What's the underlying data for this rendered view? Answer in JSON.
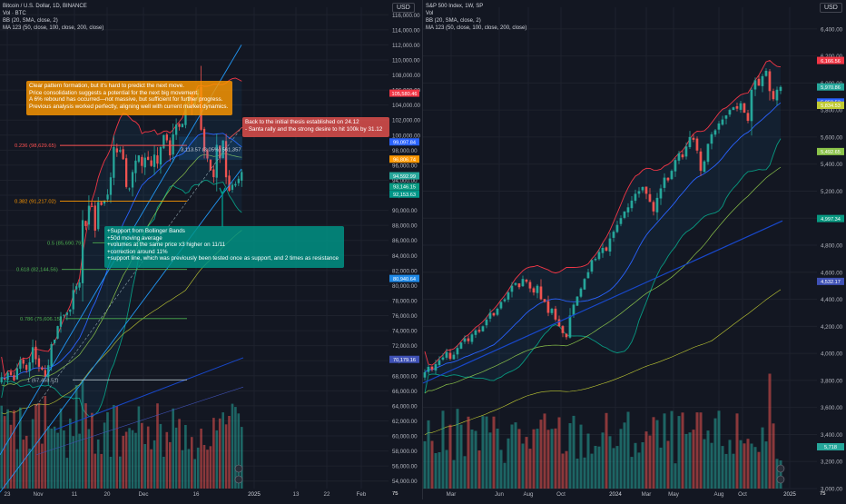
{
  "colors": {
    "bg": "#131722",
    "grid": "#1e222d",
    "text": "#b2b5be",
    "up": "#26a69a",
    "down": "#ef5350",
    "bbUpper": "#f23645",
    "bbMid": "#2962ff",
    "bbLower": "#089981",
    "ma": "#1848cc",
    "fib": "#ff5252",
    "orange": "#ff9800",
    "teal": "#009688",
    "blue": "#2196f3"
  },
  "left_panel": {
    "legend": [
      "Bitcoin / U.S. Dollar, 1D, BINANCE",
      "Vol · BTC",
      "BB (20, SMA, close, 2)",
      "MA 123 (50, close, 100, close, 200, close)"
    ],
    "currency": "USD",
    "notes": {
      "orange": [
        "Clear pattern formation, but it's hard to predict the next move.",
        "Price consolidation suggests a potential for the next big movement.",
        "A 6% rebound has occurred—not massive, but sufficient for further progress.",
        "Previous analysis worked perfectly, aligning well with current market dynamics."
      ],
      "red": [
        "Back to the initial thesis established on 24.12",
        "- Santa rally and the strong desire to hit 100k by 31.12"
      ],
      "teal": [
        "+Support from Bollinger Bands",
        "+50d moving average",
        "+volumes at the same price x3 higher on 11/11",
        "+correction around 11%",
        "+support line, which was previously been tested once as support, and 2 times as resistance"
      ]
    },
    "measure_label": "3,113.57 (3.05%) 561,357",
    "fib_labels": [
      "0.236 (98,629.65)",
      "0.382 (91,217.02)",
      "0.5 (85,690.79)",
      "0.618 (82,144.56)",
      "0.786 (75,606.15)",
      "1 (67,458.51)"
    ],
    "price_badges": [
      "105,580.46",
      "99,097.84",
      "96,806.74",
      "94,592.99",
      "93,146.15",
      "92,153.63",
      "80,940.64",
      "70,179.16"
    ],
    "axis_label": "75"
  },
  "right_panel": {
    "legend": [
      "S&P 500 Index, 1W, SP",
      "Vol",
      "BB (20, SMA, close, 2)",
      "MA 123 (50, close, 100, close, 200, close)"
    ],
    "currency": "USD",
    "price_badges": [
      "6,166.56",
      "5,970.86",
      "5,859.53",
      "5,836.08",
      "5,834.53",
      "5,492.65",
      "4,997.34",
      "4,532.17",
      "5,718"
    ],
    "axis_label": "75"
  },
  "chart_data": [
    {
      "type": "candlestick",
      "title": "Bitcoin / U.S. Dollar, 1D, BINANCE",
      "x_ticks": [
        "23",
        "Nov",
        "11",
        "20",
        "Dec",
        "16",
        "2025",
        "13",
        "22",
        "Feb"
      ],
      "y_ticks": [
        54000,
        56000,
        58000,
        60000,
        62000,
        64000,
        66000,
        68000,
        70000,
        72000,
        74000,
        76000,
        78000,
        80000,
        82000,
        84000,
        86000,
        88000,
        90000,
        92000,
        94000,
        96000,
        98000,
        100000,
        102000,
        104000,
        106000,
        108000,
        110000,
        112000,
        114000,
        116000
      ],
      "ylim": [
        53000,
        117000
      ],
      "close_path": [
        67800,
        67500,
        68400,
        68100,
        67400,
        69000,
        70100,
        69600,
        68800,
        69800,
        71800,
        70200,
        69200,
        68800,
        67900,
        69400,
        72200,
        72800,
        74600,
        75900,
        76100,
        76400,
        76800,
        79400,
        79900,
        80400,
        88700,
        87900,
        90600,
        90500,
        87300,
        91100,
        90700,
        91300,
        92100,
        94400,
        98400,
        97700,
        98000,
        96800,
        93100,
        92900,
        95100,
        96600,
        97300,
        95900,
        97000,
        96700,
        95900,
        97400,
        96200,
        98400,
        100000,
        99300,
        97300,
        100100,
        101400,
        101100,
        101500,
        104200,
        105200,
        103900,
        104600,
        106100,
        100700,
        97900,
        96900,
        95300,
        94400,
        98700,
        96900,
        99300,
        94400,
        92600,
        93400,
        93500,
        94200,
        95100
      ]
    },
    {
      "type": "candlestick",
      "title": "S&P 500 Index, 1W, SP",
      "x_ticks": [
        "Mar",
        "Jun",
        "Aug",
        "Oct",
        "2024",
        "Mar",
        "May",
        "Aug",
        "Oct",
        "2025"
      ],
      "y_ticks": [
        3000,
        3200,
        3400,
        3600,
        3800,
        4000,
        4200,
        4400,
        4600,
        4800,
        5000,
        5200,
        5400,
        5600,
        5800,
        6000,
        6200,
        6400
      ],
      "ylim": [
        3000,
        6560
      ],
      "close_path": [
        3860,
        3900,
        3880,
        3920,
        3950,
        3970,
        4010,
        3960,
        3990,
        4040,
        4080,
        4110,
        4090,
        4140,
        4170,
        4160,
        4200,
        4250,
        4300,
        4280,
        4330,
        4380,
        4400,
        4450,
        4500,
        4520,
        4490,
        4550,
        4530,
        4480,
        4450,
        4500,
        4400,
        4380,
        4300,
        4330,
        4250,
        4200,
        4150,
        4120,
        4280,
        4360,
        4420,
        4480,
        4550,
        4600,
        4690,
        4700,
        4750,
        4780,
        4760,
        4850,
        4900,
        4950,
        5000,
        5050,
        5080,
        5130,
        5180,
        5200,
        5230,
        5180,
        5120,
        5050,
        5150,
        5220,
        5300,
        5280,
        5350,
        5430,
        5480,
        5450,
        5530,
        5600,
        5580,
        5500,
        5350,
        5420,
        5550,
        5620,
        5650,
        5700,
        5730,
        5760,
        5800,
        5820,
        5810,
        5850,
        5780,
        5720,
        5950,
        6020,
        5980,
        6050,
        6090,
        5940,
        5880,
        5950,
        5970
      ]
    }
  ]
}
